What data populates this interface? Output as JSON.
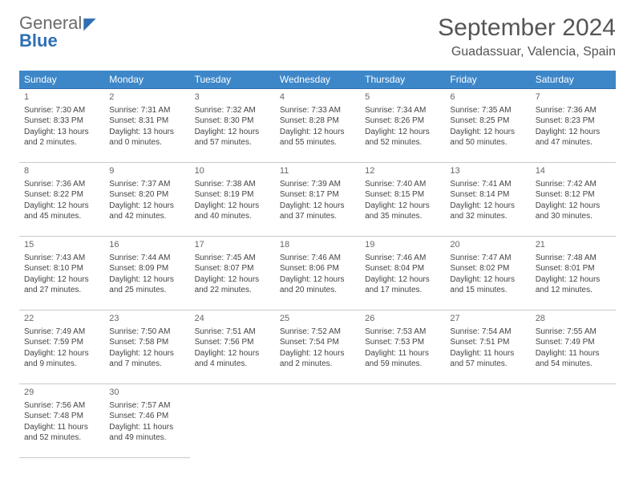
{
  "logo": {
    "general": "General",
    "blue": "Blue"
  },
  "header": {
    "month_title": "September 2024",
    "location": "Guadassuar, Valencia, Spain"
  },
  "colors": {
    "header_bg": "#3d87c9",
    "header_text": "#ffffff",
    "row_top_border": "#2f6fb3",
    "row_bottom_border": "#c8c8c8",
    "logo_blue": "#2f6fb3",
    "logo_gray": "#6b6b6b",
    "page_bg": "#ffffff",
    "text": "#444444"
  },
  "typography": {
    "month_title_fontsize": 30,
    "location_fontsize": 16,
    "weekday_fontsize": 12,
    "cell_fontsize": 10,
    "daynum_fontsize": 11
  },
  "weekdays": [
    "Sunday",
    "Monday",
    "Tuesday",
    "Wednesday",
    "Thursday",
    "Friday",
    "Saturday"
  ],
  "weeks": [
    [
      {
        "day": "1",
        "sunrise": "Sunrise: 7:30 AM",
        "sunset": "Sunset: 8:33 PM",
        "daylight": "Daylight: 13 hours and 2 minutes."
      },
      {
        "day": "2",
        "sunrise": "Sunrise: 7:31 AM",
        "sunset": "Sunset: 8:31 PM",
        "daylight": "Daylight: 13 hours and 0 minutes."
      },
      {
        "day": "3",
        "sunrise": "Sunrise: 7:32 AM",
        "sunset": "Sunset: 8:30 PM",
        "daylight": "Daylight: 12 hours and 57 minutes."
      },
      {
        "day": "4",
        "sunrise": "Sunrise: 7:33 AM",
        "sunset": "Sunset: 8:28 PM",
        "daylight": "Daylight: 12 hours and 55 minutes."
      },
      {
        "day": "5",
        "sunrise": "Sunrise: 7:34 AM",
        "sunset": "Sunset: 8:26 PM",
        "daylight": "Daylight: 12 hours and 52 minutes."
      },
      {
        "day": "6",
        "sunrise": "Sunrise: 7:35 AM",
        "sunset": "Sunset: 8:25 PM",
        "daylight": "Daylight: 12 hours and 50 minutes."
      },
      {
        "day": "7",
        "sunrise": "Sunrise: 7:36 AM",
        "sunset": "Sunset: 8:23 PM",
        "daylight": "Daylight: 12 hours and 47 minutes."
      }
    ],
    [
      {
        "day": "8",
        "sunrise": "Sunrise: 7:36 AM",
        "sunset": "Sunset: 8:22 PM",
        "daylight": "Daylight: 12 hours and 45 minutes."
      },
      {
        "day": "9",
        "sunrise": "Sunrise: 7:37 AM",
        "sunset": "Sunset: 8:20 PM",
        "daylight": "Daylight: 12 hours and 42 minutes."
      },
      {
        "day": "10",
        "sunrise": "Sunrise: 7:38 AM",
        "sunset": "Sunset: 8:19 PM",
        "daylight": "Daylight: 12 hours and 40 minutes."
      },
      {
        "day": "11",
        "sunrise": "Sunrise: 7:39 AM",
        "sunset": "Sunset: 8:17 PM",
        "daylight": "Daylight: 12 hours and 37 minutes."
      },
      {
        "day": "12",
        "sunrise": "Sunrise: 7:40 AM",
        "sunset": "Sunset: 8:15 PM",
        "daylight": "Daylight: 12 hours and 35 minutes."
      },
      {
        "day": "13",
        "sunrise": "Sunrise: 7:41 AM",
        "sunset": "Sunset: 8:14 PM",
        "daylight": "Daylight: 12 hours and 32 minutes."
      },
      {
        "day": "14",
        "sunrise": "Sunrise: 7:42 AM",
        "sunset": "Sunset: 8:12 PM",
        "daylight": "Daylight: 12 hours and 30 minutes."
      }
    ],
    [
      {
        "day": "15",
        "sunrise": "Sunrise: 7:43 AM",
        "sunset": "Sunset: 8:10 PM",
        "daylight": "Daylight: 12 hours and 27 minutes."
      },
      {
        "day": "16",
        "sunrise": "Sunrise: 7:44 AM",
        "sunset": "Sunset: 8:09 PM",
        "daylight": "Daylight: 12 hours and 25 minutes."
      },
      {
        "day": "17",
        "sunrise": "Sunrise: 7:45 AM",
        "sunset": "Sunset: 8:07 PM",
        "daylight": "Daylight: 12 hours and 22 minutes."
      },
      {
        "day": "18",
        "sunrise": "Sunrise: 7:46 AM",
        "sunset": "Sunset: 8:06 PM",
        "daylight": "Daylight: 12 hours and 20 minutes."
      },
      {
        "day": "19",
        "sunrise": "Sunrise: 7:46 AM",
        "sunset": "Sunset: 8:04 PM",
        "daylight": "Daylight: 12 hours and 17 minutes."
      },
      {
        "day": "20",
        "sunrise": "Sunrise: 7:47 AM",
        "sunset": "Sunset: 8:02 PM",
        "daylight": "Daylight: 12 hours and 15 minutes."
      },
      {
        "day": "21",
        "sunrise": "Sunrise: 7:48 AM",
        "sunset": "Sunset: 8:01 PM",
        "daylight": "Daylight: 12 hours and 12 minutes."
      }
    ],
    [
      {
        "day": "22",
        "sunrise": "Sunrise: 7:49 AM",
        "sunset": "Sunset: 7:59 PM",
        "daylight": "Daylight: 12 hours and 9 minutes."
      },
      {
        "day": "23",
        "sunrise": "Sunrise: 7:50 AM",
        "sunset": "Sunset: 7:58 PM",
        "daylight": "Daylight: 12 hours and 7 minutes."
      },
      {
        "day": "24",
        "sunrise": "Sunrise: 7:51 AM",
        "sunset": "Sunset: 7:56 PM",
        "daylight": "Daylight: 12 hours and 4 minutes."
      },
      {
        "day": "25",
        "sunrise": "Sunrise: 7:52 AM",
        "sunset": "Sunset: 7:54 PM",
        "daylight": "Daylight: 12 hours and 2 minutes."
      },
      {
        "day": "26",
        "sunrise": "Sunrise: 7:53 AM",
        "sunset": "Sunset: 7:53 PM",
        "daylight": "Daylight: 11 hours and 59 minutes."
      },
      {
        "day": "27",
        "sunrise": "Sunrise: 7:54 AM",
        "sunset": "Sunset: 7:51 PM",
        "daylight": "Daylight: 11 hours and 57 minutes."
      },
      {
        "day": "28",
        "sunrise": "Sunrise: 7:55 AM",
        "sunset": "Sunset: 7:49 PM",
        "daylight": "Daylight: 11 hours and 54 minutes."
      }
    ],
    [
      {
        "day": "29",
        "sunrise": "Sunrise: 7:56 AM",
        "sunset": "Sunset: 7:48 PM",
        "daylight": "Daylight: 11 hours and 52 minutes."
      },
      {
        "day": "30",
        "sunrise": "Sunrise: 7:57 AM",
        "sunset": "Sunset: 7:46 PM",
        "daylight": "Daylight: 11 hours and 49 minutes."
      },
      null,
      null,
      null,
      null,
      null
    ]
  ]
}
